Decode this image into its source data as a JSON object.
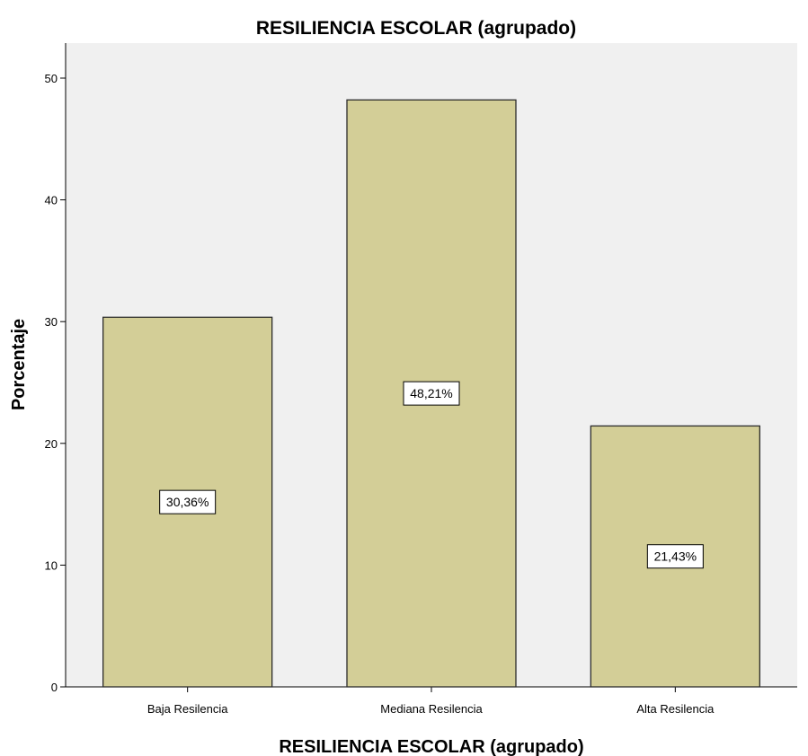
{
  "chart_data": {
    "type": "bar",
    "title": "RESILIENCIA ESCOLAR  (agrupado)",
    "xlabel": "RESILIENCIA ESCOLAR  (agrupado)",
    "ylabel": "Porcentaje",
    "categories": [
      "Baja Resilencia",
      "Mediana Resilencia",
      "Alta Resilencia"
    ],
    "values": [
      30.36,
      48.21,
      21.43
    ],
    "data_labels": [
      "30,36%",
      "48,21%",
      "21,43%"
    ],
    "ylim": [
      0,
      50
    ],
    "yticks": [
      "0",
      "10",
      "20",
      "30",
      "40",
      "50"
    ],
    "grid": false,
    "colors": {
      "plot_background": "#f0f0f0",
      "bar_fill": "#d3ce97",
      "bar_stroke": "#2b2b2b",
      "label_background": "#ffffff"
    }
  }
}
